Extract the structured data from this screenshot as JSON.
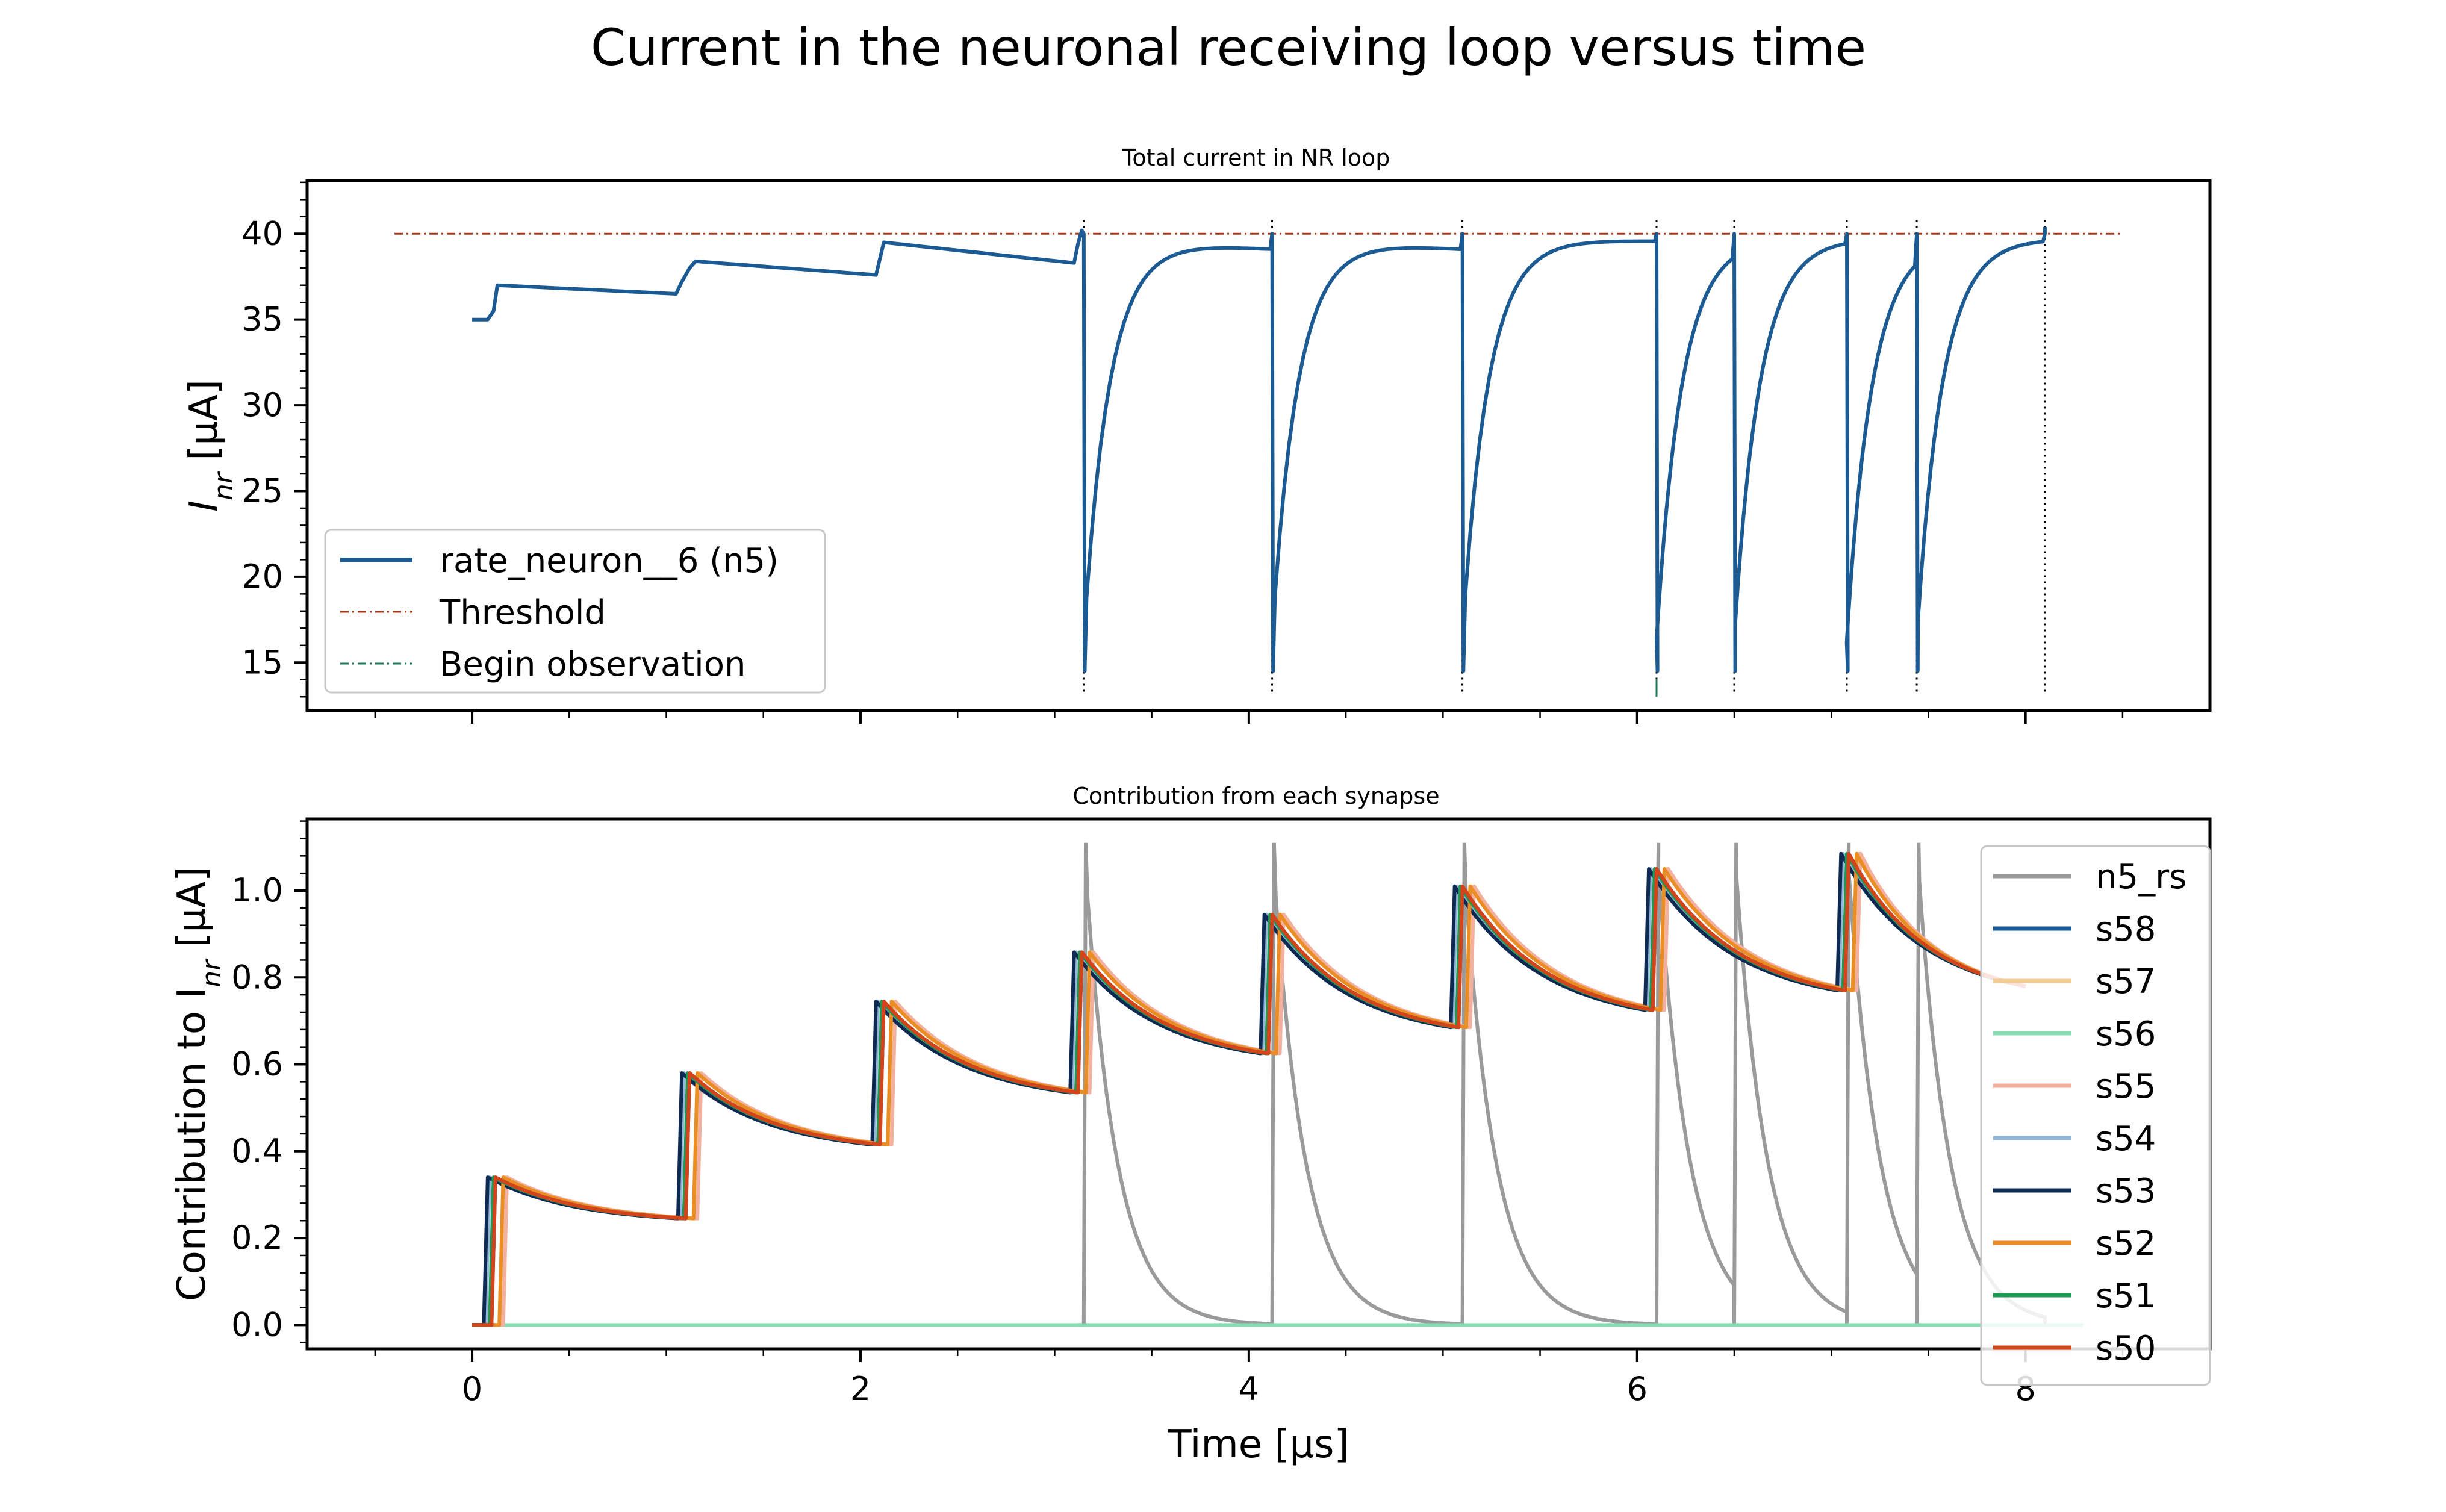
{
  "title": "Current in the neuronal receiving loop versus time",
  "xlabel": "Time [μs]",
  "colors": {
    "n5": "#1b5a93",
    "threshold": "#a23a1e",
    "begin_obs": "#1f7a5a",
    "n5_rs": "#9a9a9a",
    "s58": "#1b5a93",
    "s57": "#f4cc92",
    "s56": "#88dcb4",
    "s55": "#f3b09e",
    "s54": "#92b5d8",
    "s53": "#0e2a52",
    "s52": "#ea8e24",
    "s51": "#1f9a55",
    "s50": "#d4441a"
  },
  "chart_data": [
    {
      "type": "line",
      "title": "Total current in NR loop",
      "xlabel": "",
      "ylabel_main": "I",
      "ylabel_sub": "nr",
      "ylabel_unit": " [μA]",
      "xlim": [
        -0.85,
        8.95
      ],
      "ylim": [
        12.2,
        43.1
      ],
      "xticks": [
        0,
        2,
        4,
        6,
        8
      ],
      "yticks": [
        15,
        20,
        25,
        30,
        35,
        40
      ],
      "legend_position": "lower-left",
      "threshold": 40,
      "threshold_x": [
        -0.4,
        8.5
      ],
      "spike_times": [
        3.15,
        4.12,
        5.1,
        6.1,
        6.5,
        7.08,
        7.44,
        8.1
      ],
      "legend": [
        {
          "label": "rate_neuron__6 (n5)",
          "color_key": "n5"
        },
        {
          "label": "Threshold",
          "color_key": "threshold"
        },
        {
          "label": "Begin observation",
          "color_key": "begin_obs"
        }
      ]
    },
    {
      "type": "line",
      "title": "Contribution from each synapse",
      "xlabel": "Time [μs]",
      "ylabel_main": "Contribution to I",
      "ylabel_sub": "nr",
      "ylabel_unit": " [μA]",
      "xlim": [
        -0.85,
        8.95
      ],
      "ylim": [
        -0.055,
        1.165
      ],
      "xticks": [
        0,
        2,
        4,
        6,
        8
      ],
      "yticks": [
        0.0,
        0.2,
        0.4,
        0.6,
        0.8,
        1.0
      ],
      "legend_position": "right",
      "input_spike_times": [
        0.1,
        1.1,
        2.1,
        3.12,
        4.1,
        5.08,
        6.08,
        7.07
      ],
      "synapse_peaks": [
        0.34,
        0.58,
        0.745,
        0.858,
        0.945,
        1.01,
        1.05,
        1.085
      ],
      "synapse_troughs": [
        0.245,
        0.415,
        0.535,
        0.625,
        0.685,
        0.725,
        0.77
      ],
      "series": [
        {
          "name": "n5_rs",
          "color_key": "n5_rs"
        },
        {
          "name": "s58",
          "color_key": "s58"
        },
        {
          "name": "s57",
          "color_key": "s57"
        },
        {
          "name": "s56",
          "color_key": "s56"
        },
        {
          "name": "s55",
          "color_key": "s55"
        },
        {
          "name": "s54",
          "color_key": "s54"
        },
        {
          "name": "s53",
          "color_key": "s53"
        },
        {
          "name": "s52",
          "color_key": "s52"
        },
        {
          "name": "s51",
          "color_key": "s51"
        },
        {
          "name": "s50",
          "color_key": "s50"
        }
      ]
    }
  ]
}
